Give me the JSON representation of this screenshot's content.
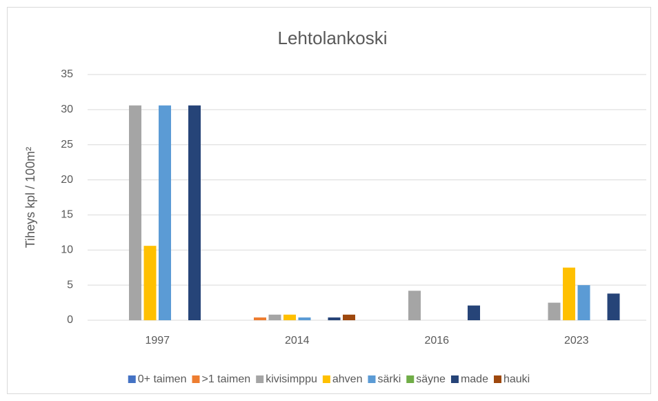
{
  "chart_data": {
    "type": "bar",
    "title": "Lehtolankoski",
    "ylabel": "Tiheys kpl / 100m²",
    "categories": [
      "1997",
      "2014",
      "2016",
      "2023"
    ],
    "series": [
      {
        "name": "0+ taimen",
        "color": "#4472c4",
        "values": [
          0,
          0,
          0,
          0
        ]
      },
      {
        "name": ">1 taimen",
        "color": "#ed7d31",
        "values": [
          0,
          0.4,
          0,
          0
        ]
      },
      {
        "name": "kivisimppu",
        "color": "#a5a5a5",
        "values": [
          30.6,
          0.8,
          4.2,
          2.5
        ]
      },
      {
        "name": "ahven",
        "color": "#ffc000",
        "values": [
          10.6,
          0.8,
          0,
          7.5
        ]
      },
      {
        "name": "särki",
        "color": "#5b9bd5",
        "values": [
          30.6,
          0.4,
          0,
          5.0
        ]
      },
      {
        "name": "säyne",
        "color": "#70ad47",
        "values": [
          0,
          0,
          0,
          0
        ]
      },
      {
        "name": "made",
        "color": "#264478",
        "values": [
          30.6,
          0.4,
          2.1,
          3.8
        ]
      },
      {
        "name": "hauki",
        "color": "#9e480e",
        "values": [
          0,
          0.8,
          0,
          0
        ]
      }
    ],
    "ylim": [
      0,
      35
    ],
    "yticks": [
      0,
      5,
      10,
      15,
      20,
      25,
      30,
      35
    ],
    "grid": true,
    "legend": "bottom"
  }
}
